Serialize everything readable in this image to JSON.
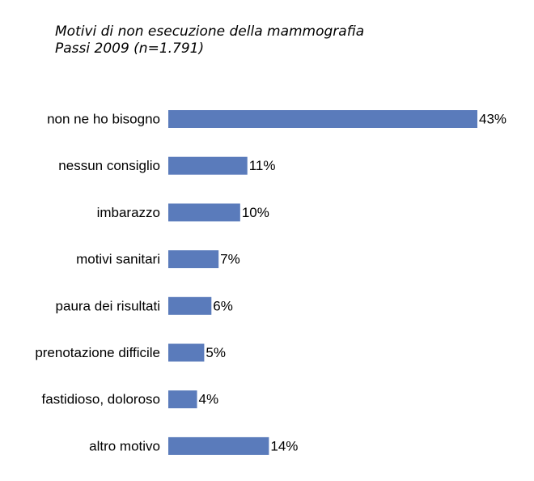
{
  "chart_data": {
    "type": "bar",
    "orientation": "horizontal",
    "title": "Motivi di non esecuzione della mammografia",
    "subtitle": "Passi 2009 (n=1.791)",
    "xlabel": "",
    "ylabel": "",
    "categories": [
      "non ne ho bisogno",
      "nessun consiglio",
      "imbarazzo",
      "motivi sanitari",
      "paura dei risultati",
      "prenotazione difficile",
      "fastidioso, doloroso",
      "altro motivo"
    ],
    "values": [
      43,
      11,
      10,
      7,
      6,
      5,
      4,
      14
    ],
    "value_labels": [
      "43%",
      "11%",
      "10%",
      "7%",
      "6%",
      "5%",
      "4%",
      "14%"
    ],
    "xlim": [
      0,
      43
    ],
    "grid": false,
    "legend": "none",
    "bar_color": "#5a7bbb"
  }
}
